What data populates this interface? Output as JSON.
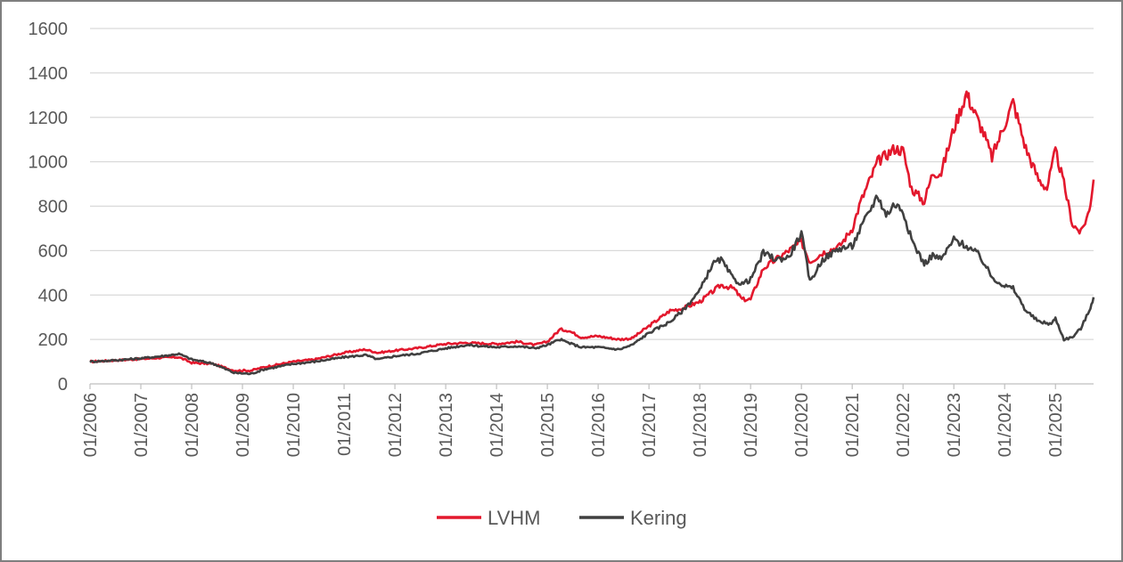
{
  "chart_data": {
    "type": "line",
    "title": "",
    "xlabel": "",
    "ylabel": "",
    "ylim": [
      0,
      1600
    ],
    "yticks": [
      0,
      200,
      400,
      600,
      800,
      1000,
      1200,
      1400,
      1600
    ],
    "xlim": [
      "2006-01",
      "2025-10"
    ],
    "xtick_labels": [
      "01/2006",
      "01/2007",
      "01/2008",
      "01/2009",
      "01/2010",
      "01/2011",
      "01/2012",
      "01/2013",
      "01/2014",
      "01/2015",
      "01/2016",
      "01/2017",
      "01/2018",
      "01/2019",
      "01/2020",
      "01/2021",
      "01/2022",
      "01/2023",
      "01/2024",
      "01/2025"
    ],
    "grid": "horizontal",
    "legend_position": "bottom-center",
    "series": [
      {
        "name": "LVHM",
        "color": "#e3182d",
        "points": [
          [
            "2006-01",
            100
          ],
          [
            "2006-06",
            105
          ],
          [
            "2007-01",
            112
          ],
          [
            "2007-06",
            118
          ],
          [
            "2007-10",
            120
          ],
          [
            "2008-01",
            95
          ],
          [
            "2008-06",
            90
          ],
          [
            "2008-11",
            60
          ],
          [
            "2009-03",
            60
          ],
          [
            "2009-06",
            75
          ],
          [
            "2010-01",
            100
          ],
          [
            "2010-06",
            110
          ],
          [
            "2011-01",
            140
          ],
          [
            "2011-06",
            155
          ],
          [
            "2011-09",
            140
          ],
          [
            "2012-01",
            150
          ],
          [
            "2012-06",
            160
          ],
          [
            "2013-01",
            180
          ],
          [
            "2013-06",
            185
          ],
          [
            "2014-01",
            180
          ],
          [
            "2014-06",
            190
          ],
          [
            "2014-10",
            175
          ],
          [
            "2015-01",
            190
          ],
          [
            "2015-04",
            245
          ],
          [
            "2015-06",
            240
          ],
          [
            "2015-09",
            210
          ],
          [
            "2016-01",
            215
          ],
          [
            "2016-06",
            200
          ],
          [
            "2016-09",
            205
          ],
          [
            "2017-01",
            260
          ],
          [
            "2017-06",
            330
          ],
          [
            "2017-09",
            340
          ],
          [
            "2018-01",
            370
          ],
          [
            "2018-06",
            445
          ],
          [
            "2018-09",
            430
          ],
          [
            "2018-11",
            380
          ],
          [
            "2019-01",
            380
          ],
          [
            "2019-04",
            520
          ],
          [
            "2019-07",
            560
          ],
          [
            "2020-01",
            640
          ],
          [
            "2020-03",
            550
          ],
          [
            "2020-06",
            590
          ],
          [
            "2020-10",
            620
          ],
          [
            "2021-01",
            700
          ],
          [
            "2021-03",
            820
          ],
          [
            "2021-07",
            1000
          ],
          [
            "2021-11",
            1060
          ],
          [
            "2022-01",
            1050
          ],
          [
            "2022-03",
            880
          ],
          [
            "2022-06",
            820
          ],
          [
            "2022-08",
            950
          ],
          [
            "2022-10",
            950
          ],
          [
            "2023-01",
            1150
          ],
          [
            "2023-04",
            1310
          ],
          [
            "2023-05",
            1260
          ],
          [
            "2023-08",
            1130
          ],
          [
            "2023-10",
            1020
          ],
          [
            "2024-01",
            1170
          ],
          [
            "2024-03",
            1270
          ],
          [
            "2024-06",
            1060
          ],
          [
            "2024-09",
            920
          ],
          [
            "2024-11",
            880
          ],
          [
            "2025-01",
            1050
          ],
          [
            "2025-03",
            900
          ],
          [
            "2025-05",
            720
          ],
          [
            "2025-07",
            680
          ],
          [
            "2025-09",
            780
          ],
          [
            "2025-10",
            920
          ]
        ]
      },
      {
        "name": "Kering",
        "color": "#404040",
        "points": [
          [
            "2006-01",
            100
          ],
          [
            "2006-06",
            105
          ],
          [
            "2007-01",
            115
          ],
          [
            "2007-06",
            125
          ],
          [
            "2007-10",
            135
          ],
          [
            "2008-01",
            110
          ],
          [
            "2008-06",
            92
          ],
          [
            "2008-11",
            50
          ],
          [
            "2009-03",
            45
          ],
          [
            "2009-06",
            65
          ],
          [
            "2010-01",
            90
          ],
          [
            "2010-06",
            100
          ],
          [
            "2011-01",
            120
          ],
          [
            "2011-06",
            130
          ],
          [
            "2011-09",
            110
          ],
          [
            "2012-01",
            125
          ],
          [
            "2012-06",
            135
          ],
          [
            "2013-01",
            160
          ],
          [
            "2013-06",
            175
          ],
          [
            "2014-01",
            165
          ],
          [
            "2014-06",
            170
          ],
          [
            "2014-10",
            160
          ],
          [
            "2015-01",
            175
          ],
          [
            "2015-04",
            200
          ],
          [
            "2015-06",
            185
          ],
          [
            "2015-09",
            165
          ],
          [
            "2016-01",
            165
          ],
          [
            "2016-06",
            155
          ],
          [
            "2016-09",
            175
          ],
          [
            "2017-01",
            230
          ],
          [
            "2017-06",
            280
          ],
          [
            "2017-09",
            330
          ],
          [
            "2018-01",
            420
          ],
          [
            "2018-04",
            540
          ],
          [
            "2018-06",
            560
          ],
          [
            "2018-09",
            470
          ],
          [
            "2018-11",
            450
          ],
          [
            "2019-01",
            470
          ],
          [
            "2019-04",
            590
          ],
          [
            "2019-07",
            560
          ],
          [
            "2019-10",
            570
          ],
          [
            "2020-01",
            680
          ],
          [
            "2020-03",
            460
          ],
          [
            "2020-06",
            560
          ],
          [
            "2020-10",
            610
          ],
          [
            "2021-01",
            620
          ],
          [
            "2021-03",
            700
          ],
          [
            "2021-07",
            850
          ],
          [
            "2021-09",
            760
          ],
          [
            "2021-11",
            810
          ],
          [
            "2022-01",
            780
          ],
          [
            "2022-03",
            650
          ],
          [
            "2022-06",
            540
          ],
          [
            "2022-08",
            580
          ],
          [
            "2022-10",
            560
          ],
          [
            "2023-01",
            650
          ],
          [
            "2023-04",
            620
          ],
          [
            "2023-07",
            580
          ],
          [
            "2023-10",
            480
          ],
          [
            "2024-01",
            440
          ],
          [
            "2024-03",
            430
          ],
          [
            "2024-06",
            330
          ],
          [
            "2024-09",
            280
          ],
          [
            "2024-12",
            270
          ],
          [
            "2025-01",
            295
          ],
          [
            "2025-03",
            200
          ],
          [
            "2025-05",
            210
          ],
          [
            "2025-07",
            250
          ],
          [
            "2025-09",
            330
          ],
          [
            "2025-10",
            390
          ]
        ]
      }
    ]
  }
}
